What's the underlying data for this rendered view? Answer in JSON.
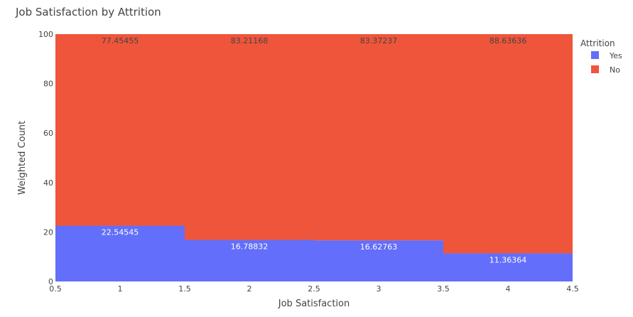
{
  "chart_data": {
    "type": "bar",
    "barmode": "stack",
    "title": "Job Satisfaction by Attrition",
    "xlabel": "Job Satisfaction",
    "ylabel": "Weighted Count",
    "x": [
      1,
      2,
      3,
      4
    ],
    "xlim": [
      0.5,
      4.5
    ],
    "ylim": [
      0,
      100
    ],
    "xticks": [
      0.5,
      1,
      1.5,
      2,
      2.5,
      3,
      3.5,
      4,
      4.5
    ],
    "xtick_labels": [
      "0.5",
      "1",
      "1.5",
      "2",
      "2.5",
      "3",
      "3.5",
      "4",
      "4.5"
    ],
    "yticks": [
      0,
      20,
      40,
      60,
      80,
      100
    ],
    "ytick_labels": [
      "0",
      "20",
      "40",
      "60",
      "80",
      "100"
    ],
    "legend_title": "Attrition",
    "legend_position": "top-right",
    "series": [
      {
        "name": "Yes",
        "color": "#636efa",
        "values": [
          22.54545,
          16.78832,
          16.62763,
          11.36364
        ],
        "labels": [
          "22.54545",
          "16.78832",
          "16.62763",
          "11.36364"
        ]
      },
      {
        "name": "No",
        "color": "#ef553b",
        "values": [
          77.45455,
          83.21168,
          83.37237,
          88.63636
        ],
        "labels": [
          "77.45455",
          "83.21168",
          "83.37237",
          "88.63636"
        ]
      }
    ],
    "plot_background": "#e5ecf6"
  }
}
